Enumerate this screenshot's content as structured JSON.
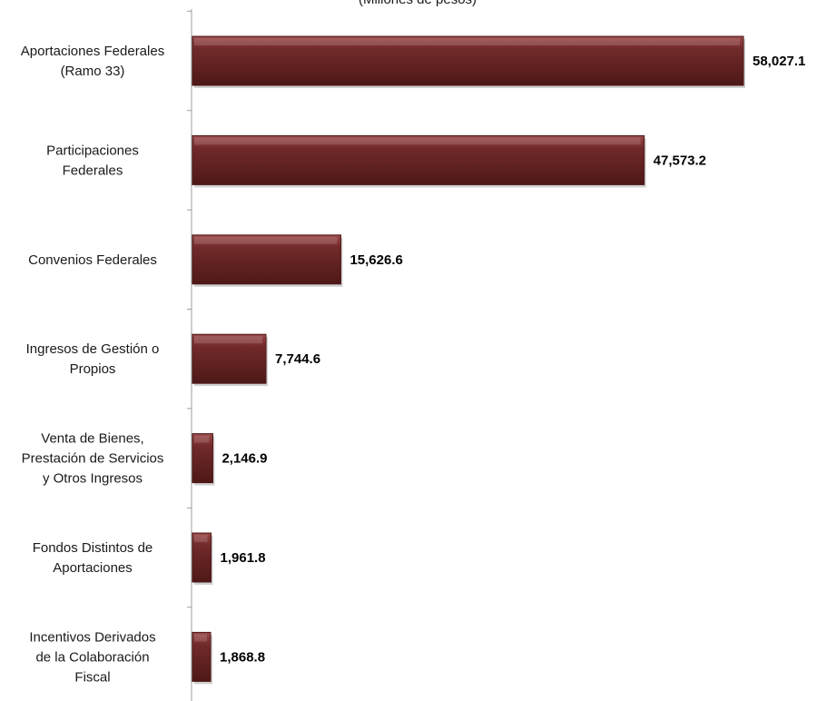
{
  "chart_data": {
    "type": "bar",
    "orientation": "horizontal",
    "title": "(Millones de pesos)",
    "categories": [
      [
        "Aportaciones Federales",
        "(Ramo 33)"
      ],
      [
        "Participaciones",
        "Federales"
      ],
      [
        "Convenios Federales"
      ],
      [
        "Ingresos de Gestión o",
        "Propios"
      ],
      [
        "Venta de Bienes,",
        "Prestación de Servicios",
        "y Otros Ingresos"
      ],
      [
        "Fondos Distintos de",
        "Aportaciones"
      ],
      [
        "Incentivos Derivados",
        "de la Colaboración",
        "Fiscal"
      ]
    ],
    "values": [
      58027.1,
      47573.2,
      15626.6,
      7744.6,
      2146.9,
      1961.8,
      1868.8
    ],
    "value_labels": [
      "58,027.1",
      "47,573.2",
      "15,626.6",
      "7,744.6",
      "2,146.9",
      "1,961.8",
      "1,868.8"
    ],
    "xlim": [
      0,
      58027.1
    ],
    "xlabel": "",
    "ylabel": "",
    "grid": false,
    "legend": "none",
    "colors": {
      "bar": "#722a2a",
      "bar_light": "#9a4848",
      "bar_dark": "#4e1818",
      "axis": "#9e9e9e"
    }
  }
}
